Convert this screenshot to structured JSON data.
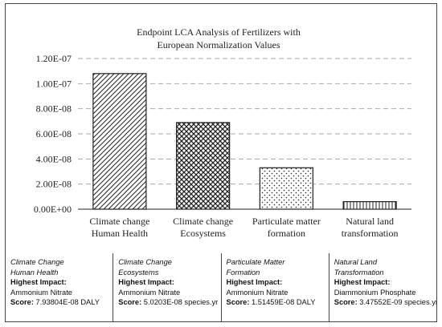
{
  "chart_data": {
    "type": "bar",
    "title": [
      "Endpoint LCA Analysis of Fertilizers with",
      "European Normalization Values"
    ],
    "categories": [
      [
        "Climate change",
        "Human Health"
      ],
      [
        "Climate change",
        "Ecosystems"
      ],
      [
        "Particulate matter",
        "formation"
      ],
      [
        "Natural land",
        "transformation"
      ]
    ],
    "values": [
      1.08e-07,
      6.9e-08,
      3.3e-08,
      6e-09
    ],
    "patterns": [
      "diagonal-hatch",
      "diamond-lattice",
      "dots",
      "vertical-lines"
    ],
    "ylim": [
      0,
      1.2e-07
    ],
    "yticks": [
      "0.00E+00",
      "2.00E-08",
      "4.00E-08",
      "6.00E-08",
      "8.00E-08",
      "1.00E-07",
      "1.20E-07"
    ],
    "grid": true,
    "gridline_style": "dashed",
    "bar_color": "#222222",
    "grid_color": "#a6a6a6"
  },
  "impact_table": [
    {
      "name": [
        "Climate Change",
        "Human Health"
      ],
      "heading": "Highest Impact:",
      "material": "Ammonium Nitrate",
      "score_label": "Score:",
      "score_value": "7.93804E-08 DALY"
    },
    {
      "name": [
        "Climate Change",
        "Ecosystems"
      ],
      "heading": "Highest Impact:",
      "material": "Ammonium Nitrate",
      "score_label": "Score:",
      "score_value": "5.0203E-08 species.yr"
    },
    {
      "name": [
        "Particulate Matter",
        "Formation"
      ],
      "heading": "Highest Impact:",
      "material": "Ammonium Nitrate",
      "score_label": "Score:",
      "score_value": "1.51459E-08 DALY"
    },
    {
      "name": [
        "Natural Land",
        "Transformation"
      ],
      "heading": "Highest Impact:",
      "material": "Diammonium Phosphate",
      "score_label": "Score:",
      "score_value": "3.47552E-09 species.yr"
    }
  ]
}
